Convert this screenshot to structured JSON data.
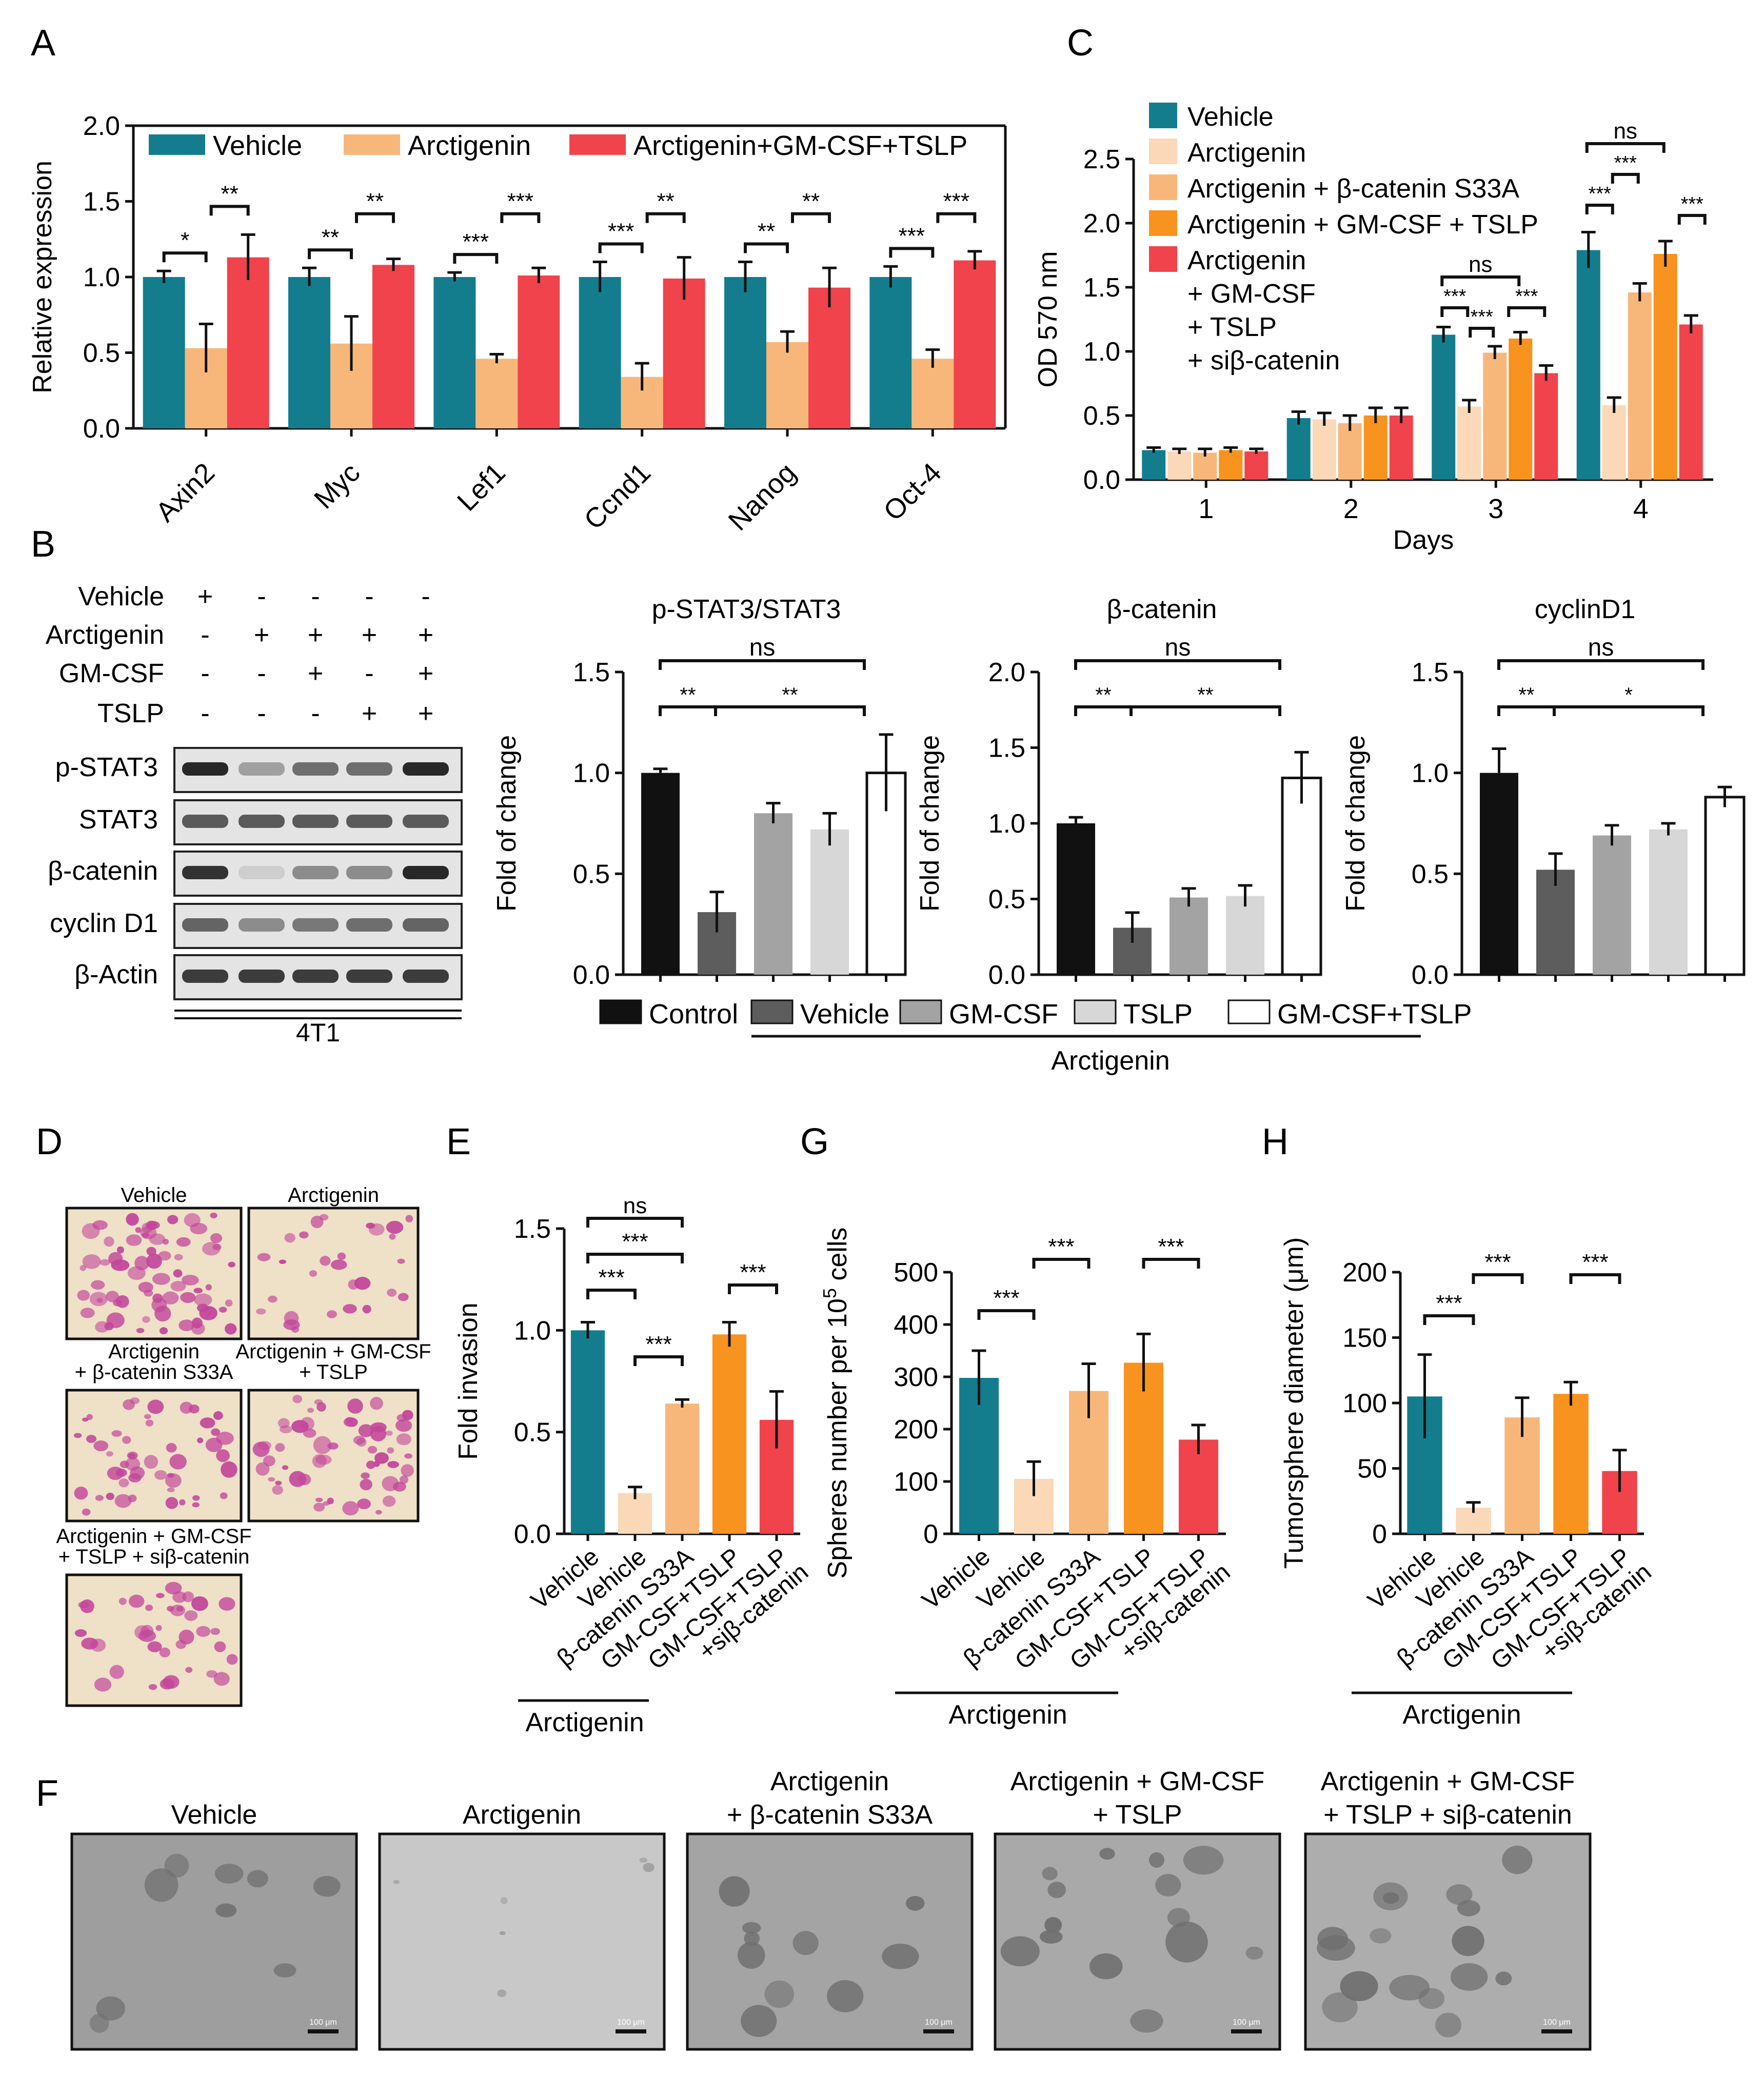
{
  "colors": {
    "teal": "#137d8e",
    "peach": "#fbd8b8",
    "lightorange": "#f8b77a",
    "orange": "#f7931e",
    "red": "#f0434c",
    "black": "#111111",
    "dgray": "#5d5d5d",
    "mgray": "#a3a3a3",
    "lgray": "#d7d7d7",
    "white": "#ffffff"
  },
  "panels": {
    "A": "A",
    "B": "B",
    "C": "C",
    "D": "D",
    "E": "E",
    "F": "F",
    "G": "G",
    "H": "H"
  },
  "chart_data": [
    {
      "id": "A",
      "type": "bar",
      "ylabel": "Relative expression",
      "ylim": [
        0,
        2.0
      ],
      "yticks": [
        "0.0",
        "0.5",
        "1.0",
        "1.5",
        "2.0"
      ],
      "categories": [
        "Axin2",
        "Myc",
        "Lef1",
        "Ccnd1",
        "Nanog",
        "Oct-4"
      ],
      "series": [
        {
          "name": "Vehicle",
          "color": "teal",
          "values": [
            1.0,
            1.0,
            1.0,
            1.0,
            1.0,
            1.0
          ],
          "errors": [
            0.04,
            0.06,
            0.03,
            0.1,
            0.1,
            0.07
          ]
        },
        {
          "name": "Arctigenin",
          "color": "lightorange",
          "values": [
            0.53,
            0.56,
            0.46,
            0.34,
            0.57,
            0.46
          ],
          "errors": [
            0.16,
            0.18,
            0.03,
            0.09,
            0.07,
            0.06
          ]
        },
        {
          "name": "Arctigenin+GM-CSF+TSLP",
          "color": "red",
          "values": [
            1.13,
            1.08,
            1.01,
            0.99,
            0.93,
            1.11
          ],
          "errors": [
            0.15,
            0.04,
            0.05,
            0.14,
            0.13,
            0.06
          ]
        }
      ],
      "sig": [
        [
          "*",
          "**"
        ],
        [
          "**",
          "**"
        ],
        [
          "***",
          "***"
        ],
        [
          "***",
          "**"
        ],
        [
          "**",
          "**"
        ],
        [
          "***",
          "***"
        ]
      ]
    },
    {
      "id": "C",
      "type": "bar",
      "xlabel": "Days",
      "ylabel": "OD 570 nm",
      "ylim": [
        0,
        2.5
      ],
      "yticks": [
        "0.0",
        "0.5",
        "1.0",
        "1.5",
        "2.0",
        "2.5"
      ],
      "categories": [
        "1",
        "2",
        "3",
        "4"
      ],
      "legend": [
        "Vehicle",
        "Arctigenin",
        "Arctigenin + β-catenin S33A",
        "Arctigenin + GM-CSF + TSLP",
        "Arctigenin",
        "+ GM-CSF",
        "+ TSLP",
        "+ siβ-catenin"
      ],
      "series": [
        {
          "name": "Vehicle",
          "color": "teal",
          "values": [
            0.23,
            0.48,
            1.13,
            1.79
          ],
          "errors": [
            0.02,
            0.05,
            0.06,
            0.14
          ]
        },
        {
          "name": "Arctigenin",
          "color": "peach",
          "values": [
            0.22,
            0.47,
            0.57,
            0.58
          ],
          "errors": [
            0.02,
            0.05,
            0.05,
            0.06
          ]
        },
        {
          "name": "Arctigenin + β-catenin S33A",
          "color": "lightorange",
          "values": [
            0.21,
            0.44,
            0.99,
            1.46
          ],
          "errors": [
            0.03,
            0.06,
            0.05,
            0.07
          ]
        },
        {
          "name": "Arctigenin + GM-CSF + TSLP",
          "color": "orange",
          "values": [
            0.23,
            0.5,
            1.1,
            1.76
          ],
          "errors": [
            0.02,
            0.06,
            0.05,
            0.1
          ]
        },
        {
          "name": "Arctigenin + GM-CSF + TSLP + siβ-catenin",
          "color": "red",
          "values": [
            0.22,
            0.5,
            0.83,
            1.21
          ],
          "errors": [
            0.02,
            0.06,
            0.06,
            0.07
          ]
        }
      ],
      "sig_day3": [
        "***",
        "***",
        "***",
        "ns"
      ],
      "sig_day4": [
        "***",
        "***",
        "***",
        "ns"
      ]
    },
    {
      "id": "B1",
      "type": "bar",
      "title": "p-STAT3/STAT3",
      "ylabel": "Fold of change",
      "ylim": [
        0,
        1.5
      ],
      "yticks": [
        "0.0",
        "0.5",
        "1.0",
        "1.5"
      ],
      "values": [
        1.0,
        0.31,
        0.8,
        0.72,
        1.0
      ],
      "errors": [
        0.02,
        0.1,
        0.05,
        0.08,
        0.19
      ],
      "sig": [
        "**",
        "**",
        "ns"
      ]
    },
    {
      "id": "B2",
      "type": "bar",
      "title": "β-catenin",
      "ylabel": "Fold of change",
      "ylim": [
        0,
        2.0
      ],
      "yticks": [
        "0.0",
        "0.5",
        "1.0",
        "1.5",
        "2.0"
      ],
      "values": [
        1.0,
        0.31,
        0.51,
        0.52,
        1.3
      ],
      "errors": [
        0.04,
        0.1,
        0.06,
        0.07,
        0.17
      ],
      "sig": [
        "**",
        "**",
        "ns"
      ]
    },
    {
      "id": "B3",
      "type": "bar",
      "title": "cyclinD1",
      "ylabel": "Fold of change",
      "ylim": [
        0,
        1.5
      ],
      "yticks": [
        "0.0",
        "0.5",
        "1.0",
        "1.5"
      ],
      "values": [
        1.0,
        0.52,
        0.69,
        0.72,
        0.88
      ],
      "errors": [
        0.12,
        0.08,
        0.05,
        0.03,
        0.05
      ],
      "sig": [
        "**",
        "*",
        "ns"
      ]
    },
    {
      "id": "E",
      "type": "bar",
      "ylabel": "Fold invasion",
      "ylim": [
        0,
        1.5
      ],
      "yticks": [
        "0.0",
        "0.5",
        "1.0",
        "1.5"
      ],
      "categories": [
        "Vehicle",
        "Vehicle",
        "β-catenin S33A",
        "GM-CSF+TSLP",
        "GM-CSF+TSLP +siβ-catenin"
      ],
      "values": [
        1.0,
        0.2,
        0.64,
        0.98,
        0.56
      ],
      "errors": [
        0.04,
        0.03,
        0.02,
        0.06,
        0.14
      ],
      "group_label": "Arctigenin",
      "sig": [
        "***",
        "***",
        "***",
        "***",
        "ns"
      ]
    },
    {
      "id": "G",
      "type": "bar",
      "ylabel_prefix": "Spheres number per 10",
      "ylabel_sup": "5",
      "ylabel_suffix": " cells",
      "ylim": [
        0,
        500
      ],
      "yticks": [
        "0",
        "100",
        "200",
        "300",
        "400",
        "500"
      ],
      "categories": [
        "Vehicle",
        "Vehicle",
        "β-catenin S33A",
        "GM-CSF+TSLP",
        "GM-CSF+TSLP +siβ-catenin"
      ],
      "values": [
        298,
        105,
        273,
        327,
        180
      ],
      "errors": [
        52,
        33,
        52,
        55,
        28
      ],
      "group_label": "Arctigenin",
      "sig": [
        "***",
        "***",
        "***"
      ]
    },
    {
      "id": "H",
      "type": "bar",
      "ylabel": "Tumorsphere diameter (μm)",
      "ylim": [
        0,
        200
      ],
      "yticks": [
        "0",
        "50",
        "100",
        "150",
        "200"
      ],
      "categories": [
        "Vehicle",
        "Vehicle",
        "β-catenin S33A",
        "GM-CSF+TSLP",
        "GM-CSF+TSLP +siβ-catenin"
      ],
      "values": [
        105,
        20,
        89,
        107,
        48
      ],
      "errors": [
        32,
        4,
        15,
        9,
        16
      ],
      "group_label": "Arctigenin",
      "sig": [
        "***",
        "***",
        "***"
      ]
    }
  ],
  "legendB": [
    "Control",
    "Vehicle",
    "GM-CSF",
    "TSLP",
    "GM-CSF+TSLP"
  ],
  "legendB_group": "Arctigenin",
  "blot": {
    "rows": [
      "Vehicle",
      "Arctigenin",
      "GM-CSF",
      "TSLP"
    ],
    "signs": [
      [
        "+",
        "-",
        "-",
        "-",
        "-"
      ],
      [
        "-",
        "+",
        "+",
        "+",
        "+"
      ],
      [
        "-",
        "-",
        "+",
        "-",
        "+"
      ],
      [
        "-",
        "-",
        "-",
        "+",
        "+"
      ]
    ],
    "bands": [
      "p-STAT3",
      "STAT3",
      "β-catenin",
      "cyclin D1",
      "β-Actin"
    ],
    "intensity": [
      [
        0.95,
        0.35,
        0.6,
        0.6,
        0.95
      ],
      [
        0.7,
        0.7,
        0.7,
        0.7,
        0.7
      ],
      [
        0.9,
        0.12,
        0.45,
        0.45,
        0.95
      ],
      [
        0.65,
        0.45,
        0.55,
        0.6,
        0.65
      ],
      [
        0.85,
        0.85,
        0.85,
        0.85,
        0.85
      ]
    ],
    "cell_line": "4T1"
  },
  "D": {
    "labels": [
      "Vehicle",
      "Arctigenin",
      "Arctigenin",
      "+ β-catenin S33A",
      "Arctigenin + GM-CSF",
      "+ TSLP",
      "Arctigenin + GM-CSF",
      "+ TSLP + siβ-catenin"
    ]
  },
  "F": {
    "labels": [
      "Vehicle",
      "Arctigenin",
      "Arctigenin",
      "+ β-catenin S33A",
      "Arctigenin + GM-CSF",
      "+ TSLP",
      "Arctigenin + GM-CSF",
      "+ TSLP + siβ-catenin"
    ],
    "scale": "100 μm"
  }
}
